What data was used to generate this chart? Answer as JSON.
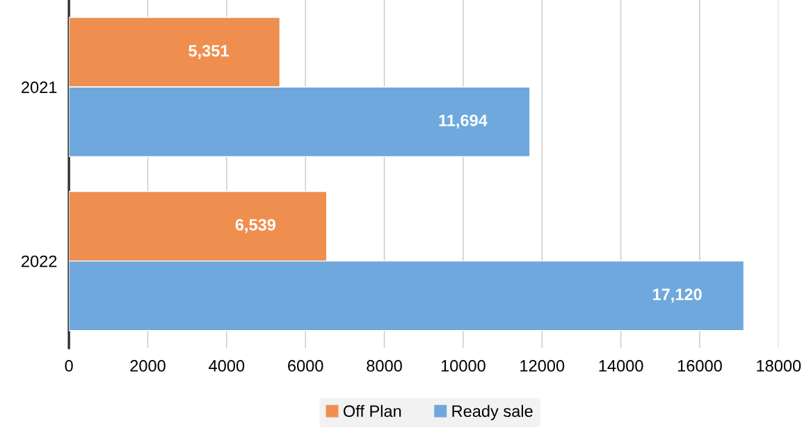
{
  "chart_data": {
    "type": "bar",
    "orientation": "horizontal",
    "categories": [
      "2021",
      "2022"
    ],
    "series": [
      {
        "name": "Off Plan",
        "color": "#ef8f4f",
        "values": [
          5351,
          6539
        ],
        "value_labels": [
          "5,351",
          "6,539"
        ]
      },
      {
        "name": "Ready sale",
        "color": "#6fa8dc",
        "values": [
          11694,
          17120
        ],
        "value_labels": [
          "11,694",
          "17,120"
        ]
      }
    ],
    "xlim": [
      0,
      18000
    ],
    "xticks": [
      0,
      2000,
      4000,
      6000,
      8000,
      10000,
      12000,
      14000,
      16000,
      18000
    ],
    "grid": "x",
    "legend": "bottom"
  }
}
